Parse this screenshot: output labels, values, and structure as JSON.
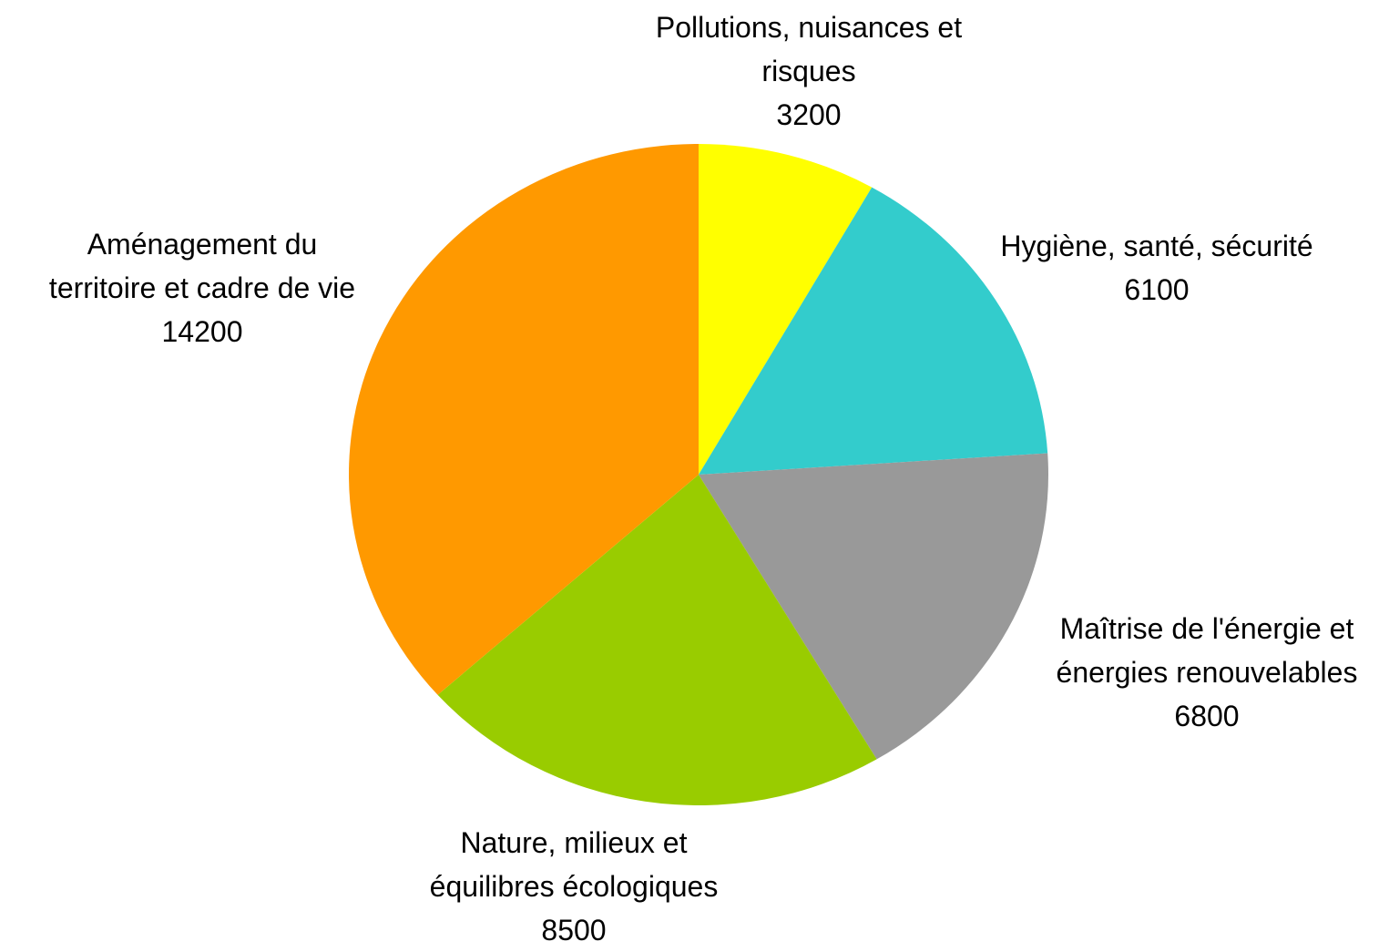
{
  "chart_data": {
    "type": "pie",
    "categories": [
      "Pollutions, nuisances et\nrisques",
      "Hygiène, santé, sécurité",
      "Maîtrise de l'énergie et\nénergies renouvelables",
      "Nature, milieux et\néquilibres écologiques",
      "Aménagement du\nterritoire et cadre de vie"
    ],
    "values": [
      3200,
      6100,
      6800,
      8500,
      14200
    ],
    "colors": [
      "#ffff00",
      "#33cccc",
      "#999999",
      "#99cc00",
      "#ff9900"
    ]
  }
}
